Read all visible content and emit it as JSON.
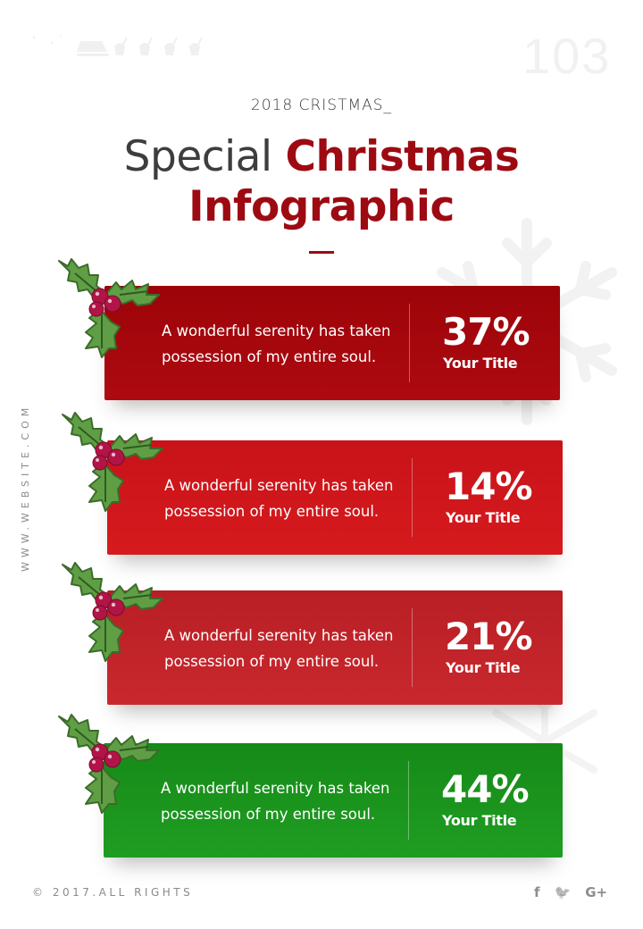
{
  "header": {
    "page_number": "103",
    "eyebrow": "2018 CRISTMAS_",
    "title_light": "Special",
    "title_accent_1": "Christmas",
    "title_accent_2": "Infographic"
  },
  "sidebar": {
    "website": "WWW.WEBSITE.COM"
  },
  "cards": [
    {
      "description": "A wonderful serenity has taken possession of my entire soul.",
      "value": "37%",
      "title": "Your Title",
      "color": "#a8060d"
    },
    {
      "description": "A wonderful serenity has taken possession of my entire soul.",
      "value": "14%",
      "title": "Your Title",
      "color": "#d01719"
    },
    {
      "description": "A wonderful serenity has taken possession of my entire soul.",
      "value": "21%",
      "title": "Your Title",
      "color": "#c2242a"
    },
    {
      "description": "A wonderful serenity has taken possession of my entire soul.",
      "value": "44%",
      "title": "Your Title",
      "color": "#19931c"
    }
  ],
  "footer": {
    "copyright": "© 2017.ALL RIGHTS",
    "socials": [
      {
        "icon": "facebook-icon",
        "glyph": "f"
      },
      {
        "icon": "twitter-icon",
        "glyph": "🐦"
      },
      {
        "icon": "google-plus-icon",
        "glyph": "G+"
      }
    ]
  },
  "colors": {
    "accent": "#9e0a12",
    "holly_leaf": "#5f9e45",
    "berry": "#b21447"
  }
}
